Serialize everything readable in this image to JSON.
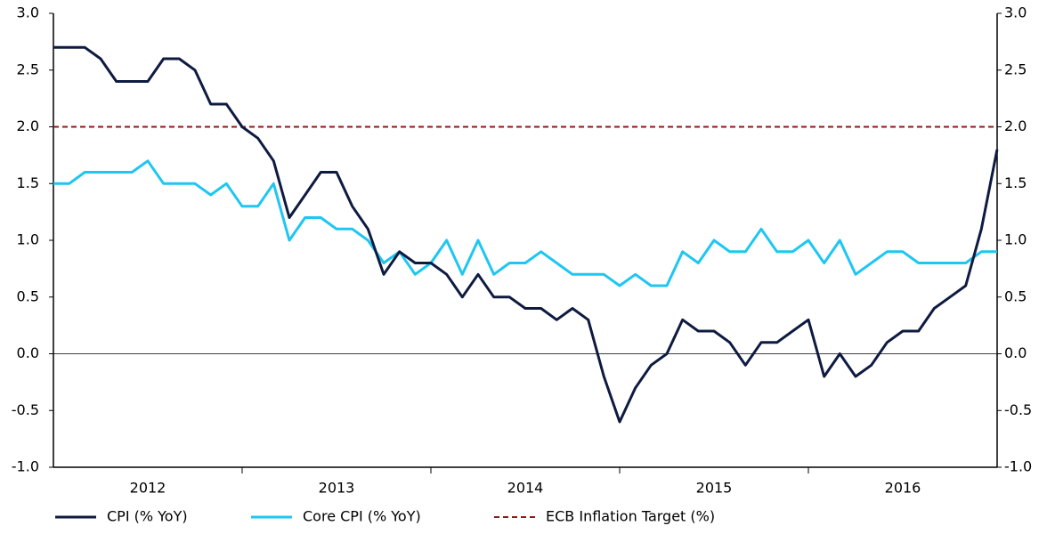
{
  "chart_data": {
    "type": "line",
    "x_labels": [
      "2012",
      "2013",
      "2014",
      "2015",
      "2016"
    ],
    "series": [
      {
        "name": "CPI (% YoY)",
        "color": "#0e1a40",
        "dash": false,
        "values": [
          2.7,
          2.7,
          2.7,
          2.6,
          2.4,
          2.4,
          2.4,
          2.6,
          2.6,
          2.5,
          2.2,
          2.2,
          2.0,
          1.9,
          1.7,
          1.2,
          1.4,
          1.6,
          1.6,
          1.3,
          1.1,
          0.7,
          0.9,
          0.8,
          0.8,
          0.7,
          0.5,
          0.7,
          0.5,
          0.5,
          0.4,
          0.4,
          0.3,
          0.4,
          0.3,
          -0.2,
          -0.6,
          -0.3,
          -0.1,
          0.0,
          0.3,
          0.2,
          0.2,
          0.1,
          -0.1,
          0.1,
          0.1,
          0.2,
          0.3,
          -0.2,
          0.0,
          -0.2,
          -0.1,
          0.1,
          0.2,
          0.2,
          0.4,
          0.5,
          0.6,
          1.1,
          1.8
        ]
      },
      {
        "name": "Core CPI (% YoY)",
        "color": "#1ec6f2",
        "dash": false,
        "values": [
          1.5,
          1.5,
          1.6,
          1.6,
          1.6,
          1.6,
          1.7,
          1.5,
          1.5,
          1.5,
          1.4,
          1.5,
          1.3,
          1.3,
          1.5,
          1.0,
          1.2,
          1.2,
          1.1,
          1.1,
          1.0,
          0.8,
          0.9,
          0.7,
          0.8,
          1.0,
          0.7,
          1.0,
          0.7,
          0.8,
          0.8,
          0.9,
          0.8,
          0.7,
          0.7,
          0.7,
          0.6,
          0.7,
          0.6,
          0.6,
          0.9,
          0.8,
          1.0,
          0.9,
          0.9,
          1.1,
          0.9,
          0.9,
          1.0,
          0.8,
          1.0,
          0.7,
          0.8,
          0.9,
          0.9,
          0.8,
          0.8,
          0.8,
          0.8,
          0.9,
          0.9
        ]
      },
      {
        "name": "ECB Inflation Target (%)",
        "color": "#8b1a1a",
        "dash": true,
        "values": [
          2,
          2,
          2,
          2,
          2,
          2,
          2,
          2,
          2,
          2,
          2,
          2,
          2,
          2,
          2,
          2,
          2,
          2,
          2,
          2,
          2,
          2,
          2,
          2,
          2,
          2,
          2,
          2,
          2,
          2,
          2,
          2,
          2,
          2,
          2,
          2,
          2,
          2,
          2,
          2,
          2,
          2,
          2,
          2,
          2,
          2,
          2,
          2,
          2,
          2,
          2,
          2,
          2,
          2,
          2,
          2,
          2,
          2,
          2,
          2,
          2
        ]
      }
    ],
    "ylim": [
      -1,
      3
    ],
    "yticks": [
      {
        "value": -1,
        "label": "-1.0"
      },
      {
        "value": -0.5,
        "label": "-0.5"
      },
      {
        "value": 0,
        "label": "0.0"
      },
      {
        "value": 0.5,
        "label": "0.5"
      },
      {
        "value": 1,
        "label": "1.0"
      },
      {
        "value": 1.5,
        "label": "1.5"
      },
      {
        "value": 2,
        "label": "2.0"
      },
      {
        "value": 2.5,
        "label": "2.5"
      },
      {
        "value": 3,
        "label": "3.0"
      }
    ],
    "y2lim": [
      -1,
      3
    ],
    "y2ticks": [
      {
        "value": -1,
        "label": "-1.0"
      },
      {
        "value": -0.5,
        "label": "-0.5"
      },
      {
        "value": 0,
        "label": "0.0"
      },
      {
        "value": 0.5,
        "label": "0.5"
      },
      {
        "value": 1,
        "label": "1.0"
      },
      {
        "value": 1.5,
        "label": "1.5"
      },
      {
        "value": 2,
        "label": "2.0"
      },
      {
        "value": 2.5,
        "label": "2.5"
      },
      {
        "value": 3,
        "label": "3.0"
      }
    ],
    "grid": false,
    "legend": "bottom"
  }
}
